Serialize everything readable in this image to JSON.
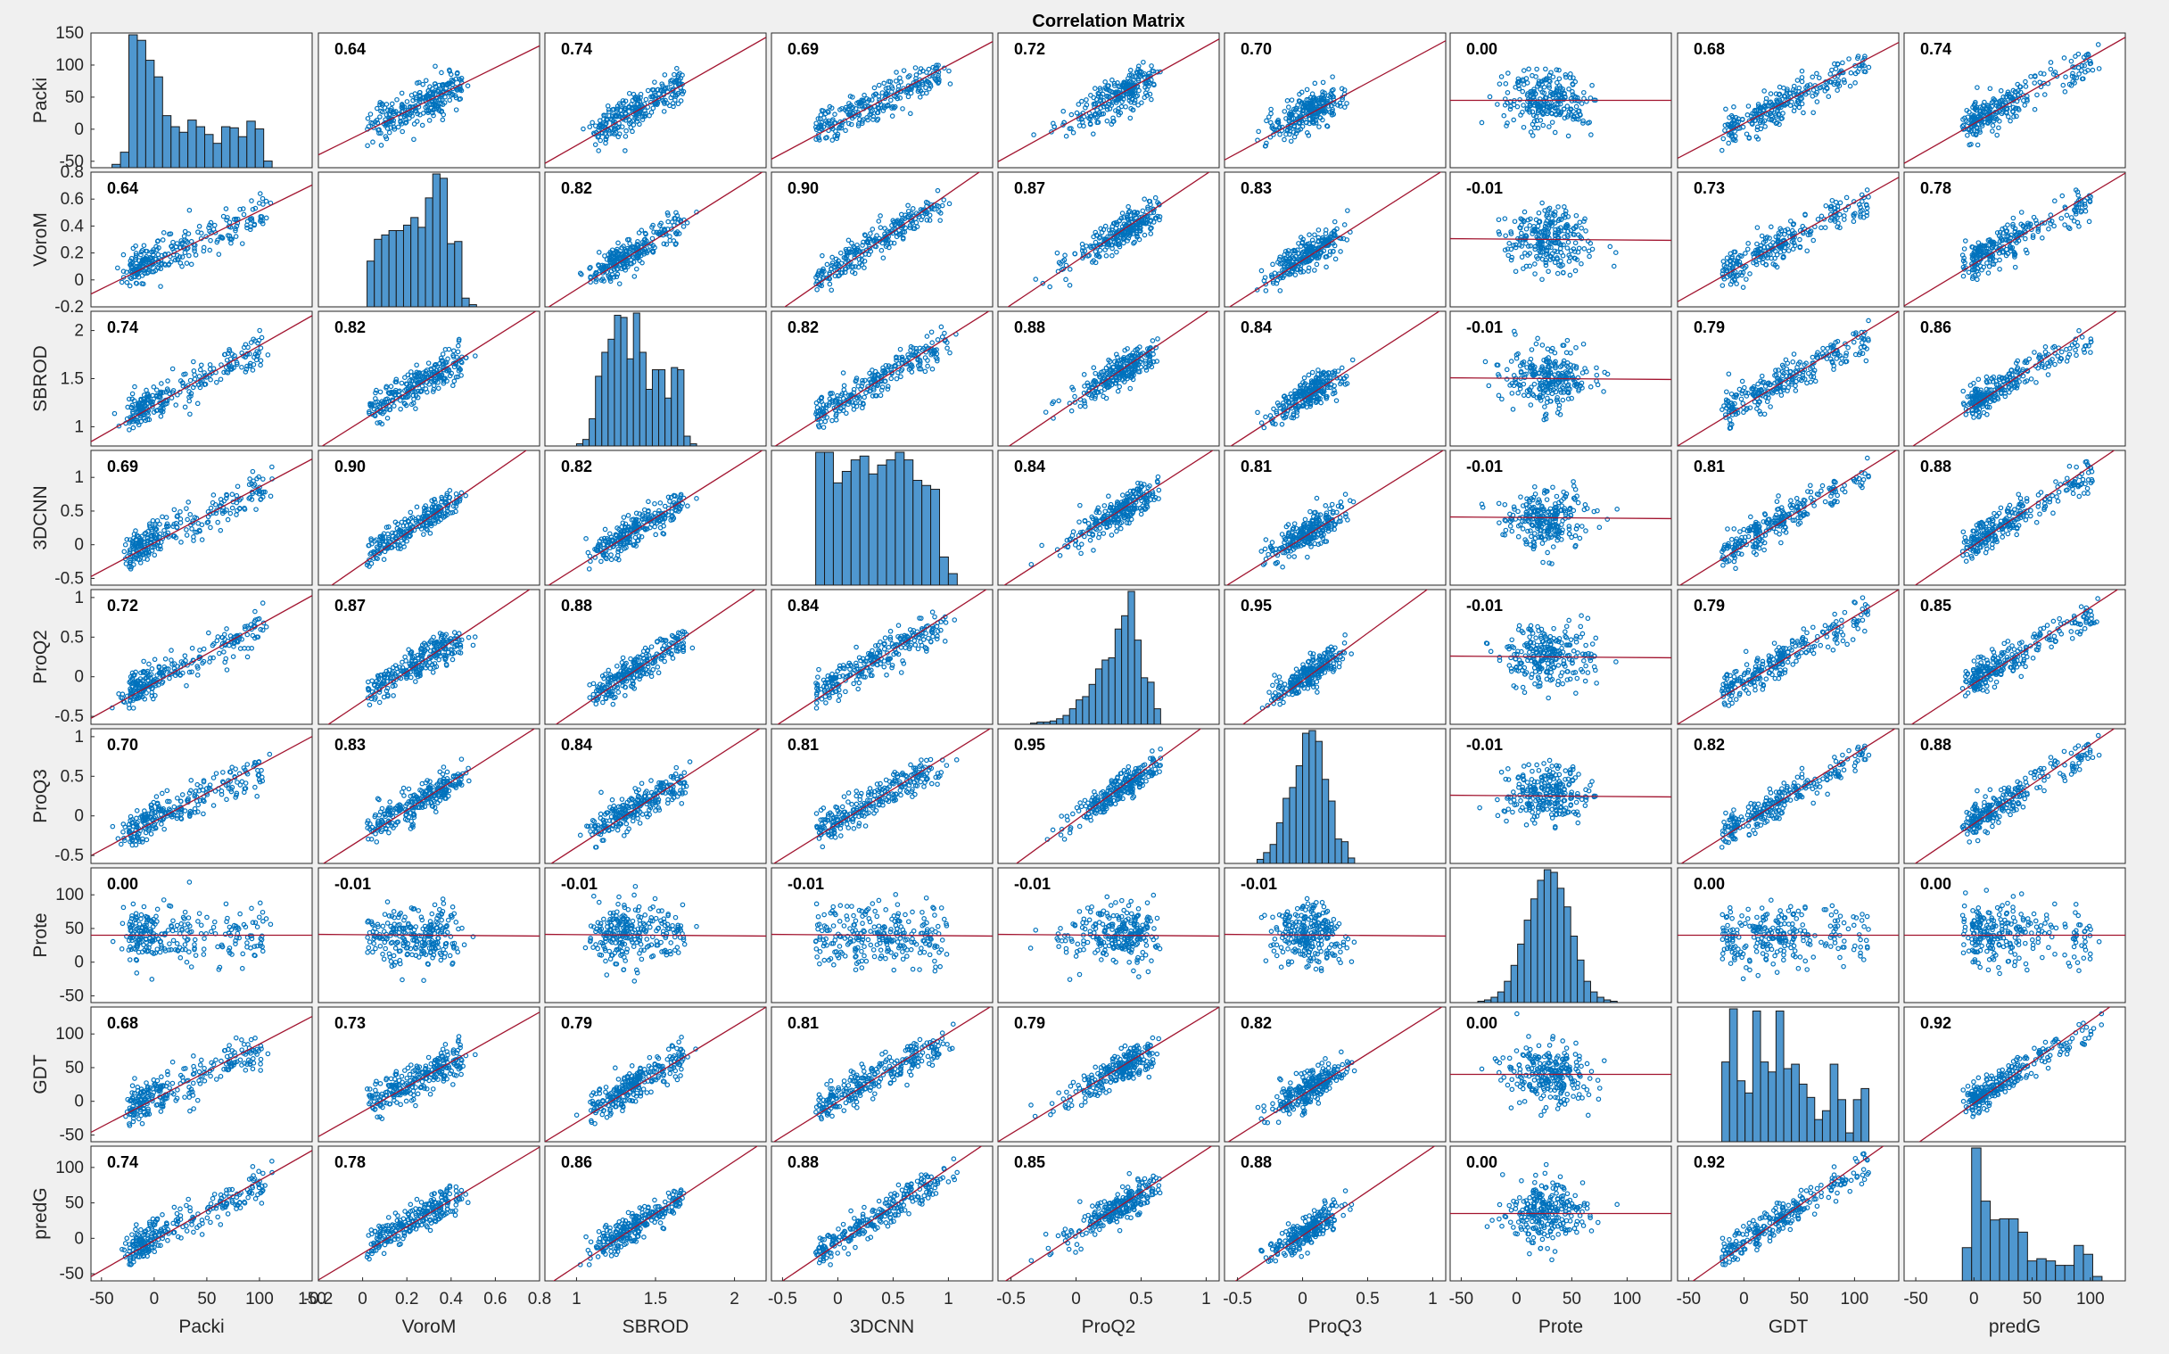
{
  "title": "Correlation Matrix",
  "chart_data": {
    "type": "scatter",
    "title": "Correlation Matrix",
    "kind": "correlation scatter-plot matrix with histograms on diagonal and least-squares fit lines",
    "variables": [
      "Packi",
      "VoroM",
      "SBROD",
      "3DCNN",
      "ProQ2",
      "ProQ3",
      "Prote",
      "GDT",
      "predG"
    ],
    "correlation": [
      [
        "",
        "0.64",
        "0.74",
        "0.69",
        "0.72",
        "0.70",
        "0.00",
        "0.68",
        "0.74"
      ],
      [
        "0.64",
        "",
        "0.82",
        "0.90",
        "0.87",
        "0.83",
        "-0.01",
        "0.73",
        "0.78"
      ],
      [
        "0.74",
        "0.82",
        "",
        "0.82",
        "0.88",
        "0.84",
        "-0.01",
        "0.79",
        "0.86"
      ],
      [
        "0.69",
        "0.90",
        "0.82",
        "",
        "0.84",
        "0.81",
        "-0.01",
        "0.81",
        "0.88"
      ],
      [
        "0.72",
        "0.87",
        "0.88",
        "0.84",
        "",
        "0.95",
        "-0.01",
        "0.79",
        "0.85"
      ],
      [
        "0.70",
        "0.83",
        "0.84",
        "0.81",
        "0.95",
        "",
        "-0.01",
        "0.82",
        "0.88"
      ],
      [
        "0.00",
        "-0.01",
        "-0.01",
        "-0.01",
        "-0.01",
        "-0.01",
        "",
        "0.00",
        "0.00"
      ],
      [
        "0.68",
        "0.73",
        "0.79",
        "0.81",
        "0.79",
        "0.82",
        "0.00",
        "",
        "0.92"
      ],
      [
        "0.74",
        "0.78",
        "0.86",
        "0.88",
        "0.85",
        "0.88",
        "0.00",
        "0.92",
        ""
      ]
    ],
    "axes": [
      {
        "name": "Packi",
        "lim": [
          -60,
          150
        ],
        "yticks": [
          "150",
          "100",
          "50",
          "0",
          "-50"
        ],
        "xticks": [
          "-50",
          "0",
          "50",
          "100",
          "150"
        ],
        "ytick_values": [
          150,
          100,
          50,
          0,
          -50
        ],
        "xtick_values": [
          -50,
          0,
          50,
          100,
          150
        ]
      },
      {
        "name": "VoroM",
        "lim": [
          -0.2,
          0.8
        ],
        "yticks": [
          "0.8",
          "0.6",
          "0.4",
          "0.2",
          "0",
          "-0.2"
        ],
        "xticks": [
          "-0.2",
          "0",
          "0.2",
          "0.4",
          "0.6",
          "0.8"
        ],
        "ytick_values": [
          0.8,
          0.6,
          0.4,
          0.2,
          0,
          -0.2
        ],
        "xtick_values": [
          -0.2,
          0,
          0.2,
          0.4,
          0.6,
          0.8
        ]
      },
      {
        "name": "SBROD",
        "lim": [
          0.8,
          2.2
        ],
        "yticks": [
          "2",
          "1.5",
          "1"
        ],
        "xticks": [
          "1",
          "1.5",
          "2"
        ],
        "ytick_values": [
          2,
          1.5,
          1
        ],
        "xtick_values": [
          1,
          1.5,
          2
        ]
      },
      {
        "name": "3DCNN",
        "lim": [
          -0.6,
          1.4
        ],
        "yticks": [
          "1",
          "0.5",
          "0",
          "-0.5"
        ],
        "xticks": [
          "-0.5",
          "0",
          "0.5",
          "1"
        ],
        "ytick_values": [
          1,
          0.5,
          0,
          -0.5
        ],
        "xtick_values": [
          -0.5,
          0,
          0.5,
          1
        ]
      },
      {
        "name": "ProQ2",
        "lim": [
          -0.6,
          1.1
        ],
        "yticks": [
          "1",
          "0.5",
          "0",
          "-0.5"
        ],
        "xticks": [
          "-0.5",
          "0",
          "0.5",
          "1"
        ],
        "ytick_values": [
          1,
          0.5,
          0,
          -0.5
        ],
        "xtick_values": [
          -0.5,
          0,
          0.5,
          1
        ]
      },
      {
        "name": "ProQ3",
        "lim": [
          -0.6,
          1.1
        ],
        "yticks": [
          "1",
          "0.5",
          "0",
          "-0.5"
        ],
        "xticks": [
          "-0.5",
          "0",
          "0.5",
          "1"
        ],
        "ytick_values": [
          1,
          0.5,
          0,
          -0.5
        ],
        "xtick_values": [
          -0.5,
          0,
          0.5,
          1
        ]
      },
      {
        "name": "Prote",
        "lim": [
          -60,
          140
        ],
        "yticks": [
          "100",
          "50",
          "0",
          "-50"
        ],
        "xticks": [
          "-50",
          "0",
          "50",
          "100"
        ],
        "ytick_values": [
          100,
          50,
          0,
          -50
        ],
        "xtick_values": [
          -50,
          0,
          50,
          100
        ]
      },
      {
        "name": "GDT",
        "lim": [
          -60,
          140
        ],
        "yticks": [
          "100",
          "50",
          "0",
          "-50"
        ],
        "xticks": [
          "-50",
          "0",
          "50",
          "100"
        ],
        "ytick_values": [
          100,
          50,
          0,
          -50
        ],
        "xtick_values": [
          -50,
          0,
          50,
          100
        ]
      },
      {
        "name": "predG",
        "lim": [
          -60,
          130
        ],
        "yticks": [
          "100",
          "50",
          "0",
          "-50"
        ],
        "xticks": [
          "-50",
          "0",
          "50",
          "100"
        ],
        "ytick_values": [
          100,
          50,
          0,
          -50
        ],
        "xtick_values": [
          -50,
          0,
          50,
          100
        ]
      }
    ],
    "histograms": [
      {
        "variable": "Packi",
        "bin_start": -40,
        "bin_width": 8,
        "counts": [
          3,
          14,
          120,
          115,
          97,
          82,
          47,
          37,
          32,
          43,
          37,
          30,
          22,
          37,
          36,
          28,
          42,
          35,
          6
        ]
      },
      {
        "variable": "VoroM",
        "bin_start": 0.02,
        "bin_width": 0.033,
        "counts": [
          42,
          62,
          66,
          70,
          70,
          75,
          82,
          73,
          100,
          122,
          118,
          58,
          60,
          8,
          2
        ]
      },
      {
        "variable": "SBROD",
        "bin_start": 1.0,
        "bin_width": 0.04,
        "counts": [
          2,
          6,
          25,
          64,
          86,
          98,
          120,
          118,
          80,
          122,
          86,
          52,
          70,
          70,
          44,
          72,
          70,
          9,
          2
        ]
      },
      {
        "variable": "3DCNN",
        "bin_start": -0.2,
        "bin_width": 0.08,
        "counts": [
          104,
          104,
          80,
          89,
          98,
          101,
          87,
          94,
          98,
          104,
          98,
          82,
          78,
          75,
          22,
          9
        ]
      },
      {
        "variable": "ProQ2",
        "bin_start": -0.35,
        "bin_width": 0.05,
        "counts": [
          1,
          2,
          2,
          3,
          5,
          8,
          14,
          22,
          25,
          36,
          50,
          58,
          60,
          86,
          98,
          120,
          76,
          42,
          38,
          14
        ]
      },
      {
        "variable": "ProQ3",
        "bin_start": -0.35,
        "bin_width": 0.05,
        "counts": [
          3,
          8,
          14,
          30,
          48,
          56,
          72,
          96,
          98,
          90,
          62,
          46,
          18,
          16,
          4
        ]
      },
      {
        "variable": "Prote",
        "bin_start": -35,
        "bin_width": 6,
        "counts": [
          1,
          2,
          4,
          8,
          16,
          28,
          44,
          62,
          78,
          92,
          100,
          98,
          86,
          72,
          50,
          32,
          16,
          8,
          4,
          2,
          1
        ]
      },
      {
        "variable": "GDT",
        "bin_start": -20,
        "bin_width": 7,
        "counts": [
          72,
          120,
          55,
          44,
          118,
          72,
          63,
          118,
          66,
          70,
          52,
          40,
          20,
          28,
          70,
          38,
          8,
          38,
          48
        ]
      },
      {
        "variable": "predG",
        "bin_start": -10,
        "bin_width": 8,
        "counts": [
          30,
          120,
          72,
          55,
          56,
          56,
          44,
          18,
          20,
          18,
          14,
          14,
          32,
          24,
          4
        ]
      }
    ]
  }
}
